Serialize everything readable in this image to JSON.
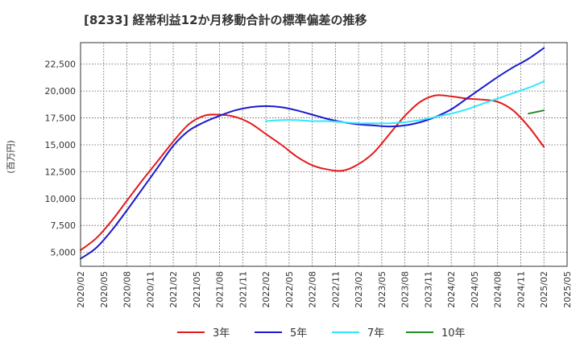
{
  "chart_data": {
    "type": "line",
    "title": "[8233]  経常利益12か月移動合計の標準偏差の推移",
    "ylabel": "(百万円)",
    "xlabel": "",
    "ylim": [
      3700,
      24500
    ],
    "y_ticks": [
      5000,
      7500,
      10000,
      12500,
      15000,
      17500,
      20000,
      22500
    ],
    "y_tick_labels": [
      "5,000",
      "7,500",
      "10,000",
      "12,500",
      "15,000",
      "17,500",
      "20,000",
      "22,500"
    ],
    "x_ticks": [
      "2020/02",
      "2020/05",
      "2020/08",
      "2020/11",
      "2021/02",
      "2021/05",
      "2021/08",
      "2021/11",
      "2022/02",
      "2022/05",
      "2022/08",
      "2022/11",
      "2023/02",
      "2023/05",
      "2023/08",
      "2023/11",
      "2024/02",
      "2024/05",
      "2024/08",
      "2024/11",
      "2025/02",
      "2025/05"
    ],
    "grid": true,
    "legend_position": "bottom",
    "series": [
      {
        "name": "3年",
        "color": "#e31a1c",
        "points": [
          [
            "2020/02",
            5200
          ],
          [
            "2020/04",
            6300
          ],
          [
            "2020/06",
            7900
          ],
          [
            "2020/08",
            9800
          ],
          [
            "2020/10",
            11700
          ],
          [
            "2020/12",
            13500
          ],
          [
            "2021/02",
            15300
          ],
          [
            "2021/04",
            16900
          ],
          [
            "2021/06",
            17700
          ],
          [
            "2021/08",
            17800
          ],
          [
            "2021/10",
            17600
          ],
          [
            "2021/12",
            17000
          ],
          [
            "2022/02",
            16000
          ],
          [
            "2022/04",
            15000
          ],
          [
            "2022/06",
            13900
          ],
          [
            "2022/08",
            13100
          ],
          [
            "2022/10",
            12700
          ],
          [
            "2022/12",
            12600
          ],
          [
            "2023/02",
            13200
          ],
          [
            "2023/04",
            14300
          ],
          [
            "2023/06",
            16000
          ],
          [
            "2023/08",
            17700
          ],
          [
            "2023/10",
            19000
          ],
          [
            "2023/12",
            19600
          ],
          [
            "2024/02",
            19500
          ],
          [
            "2024/04",
            19300
          ],
          [
            "2024/06",
            19200
          ],
          [
            "2024/08",
            19000
          ],
          [
            "2024/10",
            18200
          ],
          [
            "2024/12",
            16700
          ],
          [
            "2025/02",
            14800
          ]
        ]
      },
      {
        "name": "5年",
        "color": "#1a1acd",
        "points": [
          [
            "2020/02",
            4400
          ],
          [
            "2020/04",
            5400
          ],
          [
            "2020/06",
            7000
          ],
          [
            "2020/08",
            8900
          ],
          [
            "2020/10",
            10900
          ],
          [
            "2020/12",
            12900
          ],
          [
            "2021/02",
            14900
          ],
          [
            "2021/04",
            16300
          ],
          [
            "2021/06",
            17100
          ],
          [
            "2021/08",
            17700
          ],
          [
            "2021/10",
            18200
          ],
          [
            "2021/12",
            18500
          ],
          [
            "2022/02",
            18600
          ],
          [
            "2022/04",
            18500
          ],
          [
            "2022/06",
            18200
          ],
          [
            "2022/08",
            17800
          ],
          [
            "2022/10",
            17400
          ],
          [
            "2022/12",
            17100
          ],
          [
            "2023/02",
            16900
          ],
          [
            "2023/04",
            16800
          ],
          [
            "2023/06",
            16700
          ],
          [
            "2023/08",
            16800
          ],
          [
            "2023/10",
            17100
          ],
          [
            "2023/12",
            17600
          ],
          [
            "2024/02",
            18300
          ],
          [
            "2024/04",
            19300
          ],
          [
            "2024/06",
            20300
          ],
          [
            "2024/08",
            21300
          ],
          [
            "2024/10",
            22200
          ],
          [
            "2024/12",
            23000
          ],
          [
            "2025/02",
            24000
          ]
        ]
      },
      {
        "name": "7年",
        "color": "#33e6ff",
        "points": [
          [
            "2022/02",
            17200
          ],
          [
            "2022/04",
            17300
          ],
          [
            "2022/06",
            17300
          ],
          [
            "2022/08",
            17200
          ],
          [
            "2022/10",
            17200
          ],
          [
            "2022/12",
            17100
          ],
          [
            "2023/02",
            17000
          ],
          [
            "2023/04",
            17000
          ],
          [
            "2023/06",
            17000
          ],
          [
            "2023/08",
            17100
          ],
          [
            "2023/10",
            17300
          ],
          [
            "2023/12",
            17600
          ],
          [
            "2024/02",
            17900
          ],
          [
            "2024/04",
            18300
          ],
          [
            "2024/06",
            18800
          ],
          [
            "2024/08",
            19300
          ],
          [
            "2024/10",
            19800
          ],
          [
            "2024/12",
            20300
          ],
          [
            "2025/02",
            20900
          ]
        ]
      },
      {
        "name": "10年",
        "color": "#228b22",
        "points": [
          [
            "2024/12",
            17900
          ],
          [
            "2025/02",
            18200
          ]
        ]
      }
    ]
  }
}
